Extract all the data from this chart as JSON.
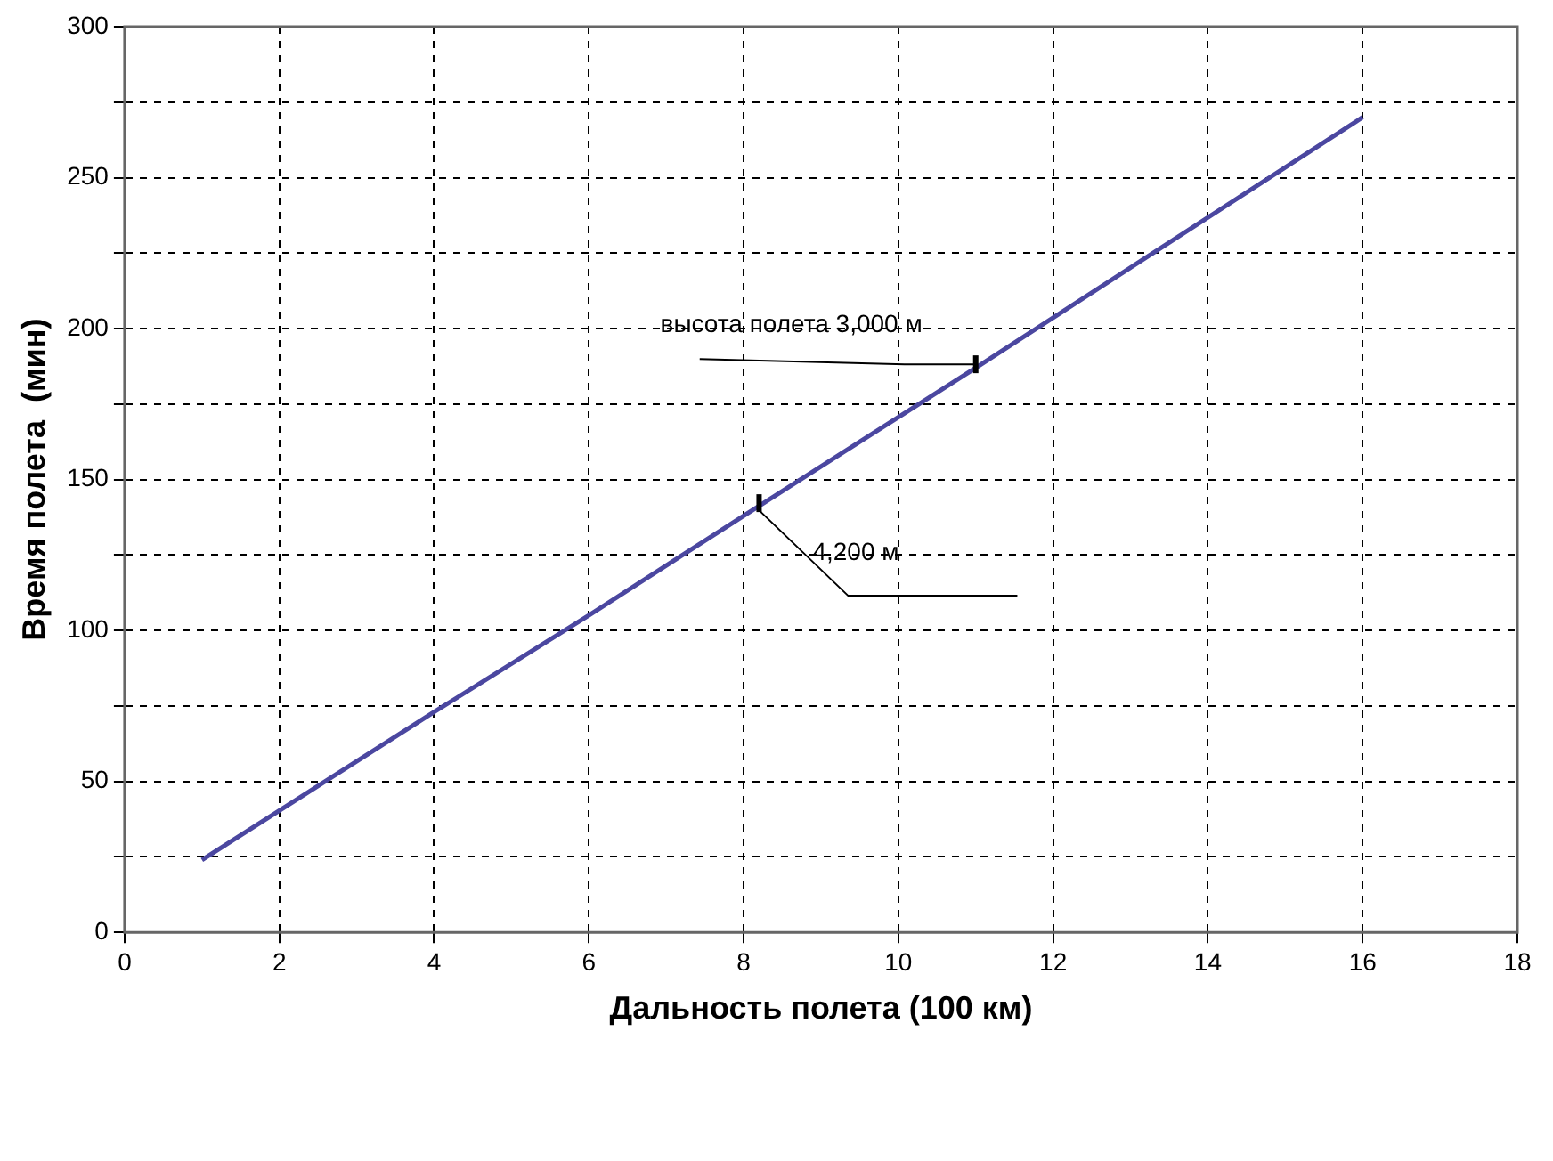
{
  "chart_data": {
    "type": "line",
    "xlabel": "Дальность полета (100 км)",
    "ylabel": "Время полета  (мин)",
    "x": [
      1,
      4,
      6,
      8,
      11,
      16
    ],
    "series": [
      {
        "color": "#4b47a0",
        "values": [
          24,
          73,
          105,
          138,
          187,
          270
        ]
      }
    ],
    "xlim": [
      0,
      18
    ],
    "xticks": [
      0,
      2,
      4,
      6,
      8,
      10,
      12,
      14,
      16,
      18
    ],
    "ylim": [
      0,
      300
    ],
    "yticks": [
      0,
      {
        "value": 25,
        "label": null
      },
      50,
      {
        "value": 75,
        "label": null
      },
      100,
      {
        "value": 125,
        "label": null
      },
      150,
      {
        "value": 175,
        "label": null
      },
      200,
      {
        "value": 225,
        "label": null
      },
      250,
      {
        "value": 275,
        "label": null
      },
      300
    ],
    "grid": true,
    "legend": false,
    "marker": "none",
    "line_style": "solid",
    "annotations": [
      {
        "text": "высота полета 3,000 м",
        "x": 11,
        "y": 187
      },
      {
        "text": "4,200 м",
        "x": 8.2,
        "y": 141
      }
    ]
  }
}
